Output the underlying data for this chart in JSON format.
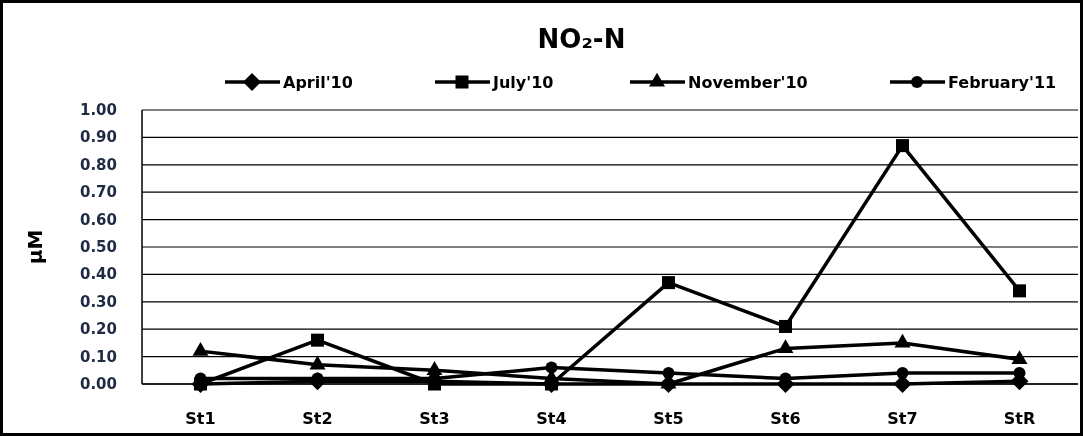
{
  "chart_data": {
    "type": "line",
    "title": "NO₂-N",
    "ylabel": "µM",
    "categories": [
      "St1",
      "St2",
      "St3",
      "St4",
      "St5",
      "St6",
      "St7",
      "StR"
    ],
    "series": [
      {
        "name": "April'10",
        "color": "#000000",
        "marker": "diamond",
        "values": [
          0.0,
          0.01,
          0.01,
          0.0,
          0.0,
          0.0,
          0.0,
          0.01
        ]
      },
      {
        "name": "July'10",
        "color": "#000000",
        "marker": "square",
        "values": [
          0.0,
          0.16,
          0.0,
          0.0,
          0.37,
          0.21,
          0.87,
          0.34
        ]
      },
      {
        "name": "November'10",
        "color": "#000000",
        "marker": "triangle",
        "values": [
          0.12,
          0.07,
          0.05,
          0.02,
          0.0,
          0.13,
          0.15,
          0.09
        ]
      },
      {
        "name": "February'11",
        "color": "#000000",
        "marker": "circle",
        "values": [
          0.02,
          0.02,
          0.02,
          0.06,
          0.04,
          0.02,
          0.04,
          0.04
        ]
      }
    ],
    "ylim": [
      0,
      1
    ],
    "yticks": [
      {
        "value": 0,
        "label": "0.00"
      },
      {
        "value": 0.1,
        "label": "0.10"
      },
      {
        "value": 0.2,
        "label": "0.20"
      },
      {
        "value": 0.3,
        "label": "0.30"
      },
      {
        "value": 0.4,
        "label": "0.40"
      },
      {
        "value": 0.5,
        "label": "0.50"
      },
      {
        "value": 0.6,
        "label": "0.60"
      },
      {
        "value": 0.7,
        "label": "0.70"
      },
      {
        "value": 0.8,
        "label": "0.80"
      },
      {
        "value": 0.9,
        "label": "0.90"
      },
      {
        "value": 1,
        "label": "1.00"
      }
    ],
    "grid": "y",
    "legend": "top",
    "line_style": "solid"
  }
}
